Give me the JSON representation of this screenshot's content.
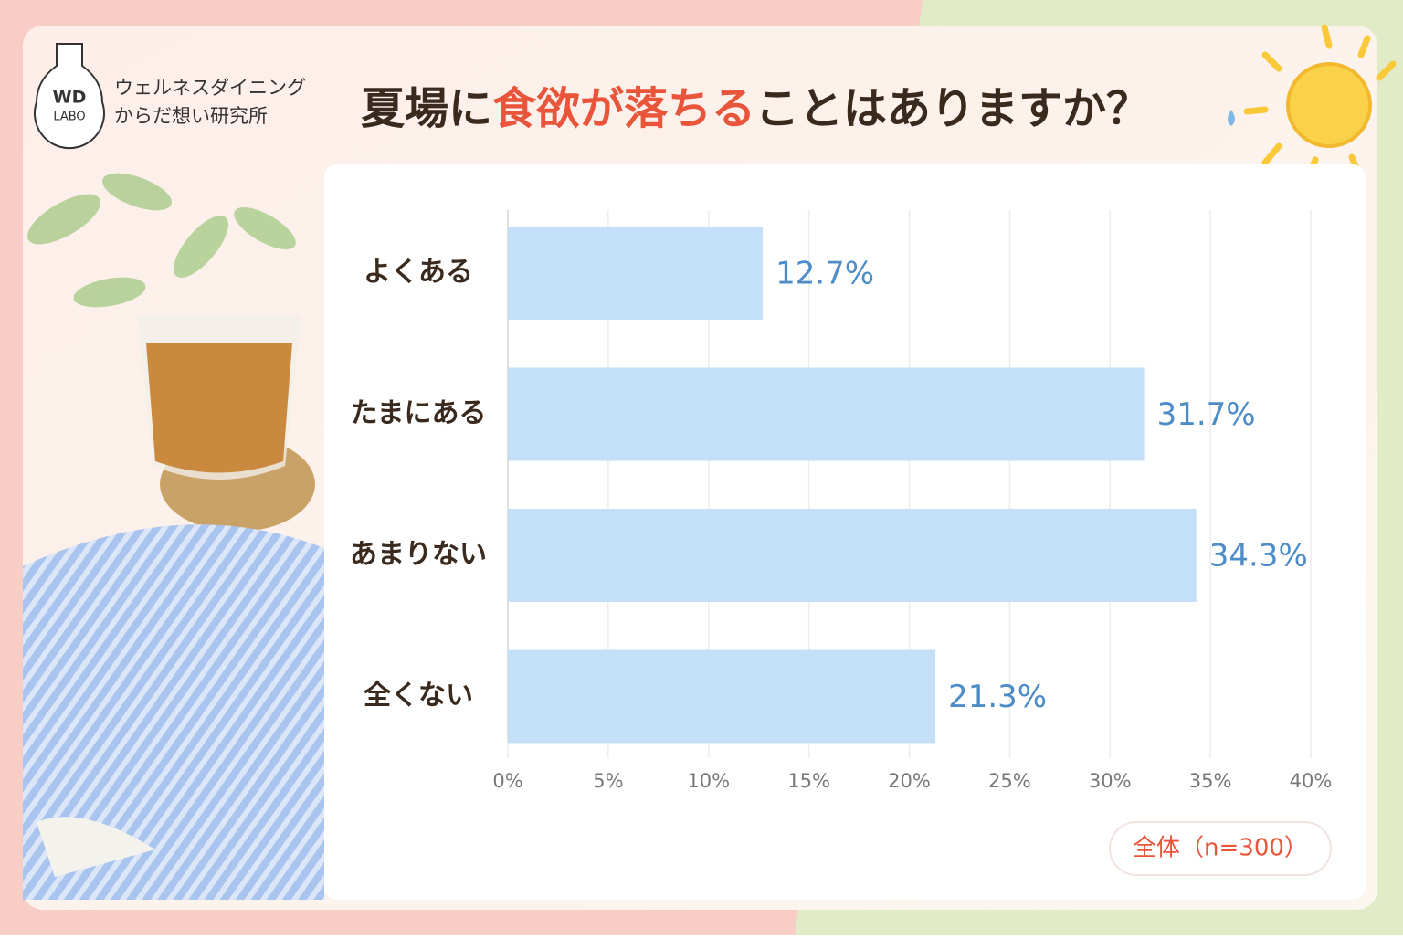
{
  "brand": {
    "mark_top": "WD",
    "mark_bottom": "LABO",
    "name": "ウェルネスダイニング",
    "subname": "からだ想い研究所"
  },
  "chart_data": {
    "type": "bar",
    "orientation": "horizontal",
    "title": [
      "夏場に",
      "食欲が落ちる",
      "ことはありますか？"
    ],
    "title_highlight_color": "#e8553b",
    "categories": [
      "よくある",
      "たまにある",
      "あまりない",
      "全くない"
    ],
    "values": [
      12.7,
      31.7,
      34.3,
      21.3
    ],
    "value_labels": [
      "12.7%",
      "31.7%",
      "34.3%",
      "21.3%"
    ],
    "color": "#c4e0f9",
    "label_color": "#4d8cc6",
    "xlim": [
      0,
      40
    ],
    "xticks": [
      {
        "value": 0,
        "label": "0%"
      },
      {
        "value": 5,
        "label": "5%"
      },
      {
        "value": 10,
        "label": "10%"
      },
      {
        "value": 15,
        "label": "15%"
      },
      {
        "value": 20,
        "label": "20%"
      },
      {
        "value": 25,
        "label": "25%"
      },
      {
        "value": 30,
        "label": "30%"
      },
      {
        "value": 35,
        "label": "35%"
      },
      {
        "value": 40,
        "label": "40%"
      }
    ],
    "grid": true,
    "note": "全体（n=300）"
  }
}
